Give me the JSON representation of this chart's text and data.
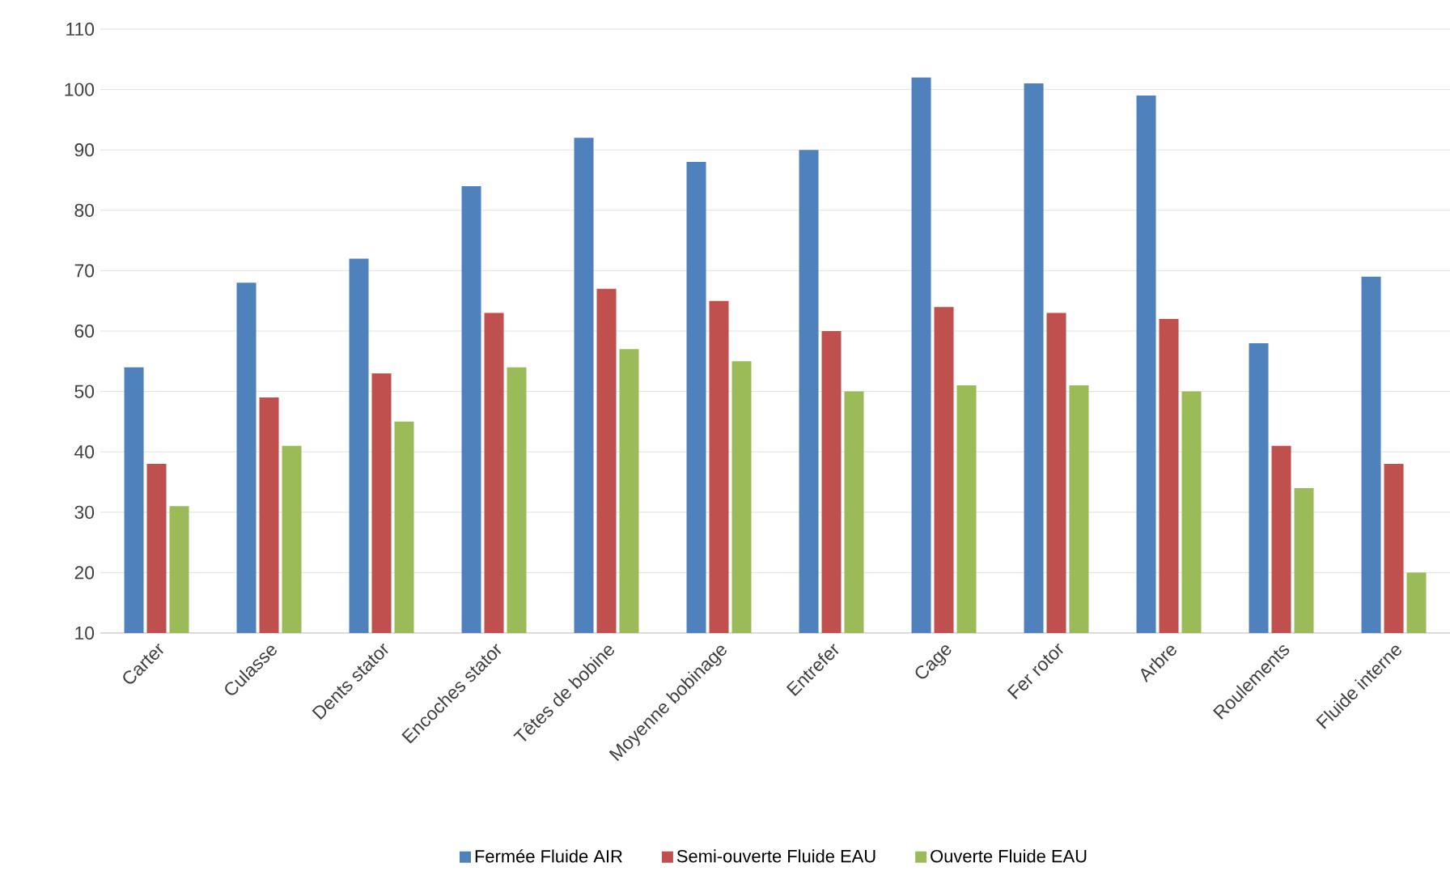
{
  "chart_data": {
    "type": "bar",
    "categories": [
      "Carter",
      "Culasse",
      "Dents stator",
      "Encoches stator",
      "Têtes de bobine",
      "Moyenne bobinage",
      "Entrefer",
      "Cage",
      "Fer rotor",
      "Arbre",
      "Roulements",
      "Fluide interne"
    ],
    "series": [
      {
        "name": "Fermée Fluide AIR",
        "color": "#4f81bd",
        "values": [
          54,
          68,
          72,
          84,
          92,
          88,
          90,
          102,
          101,
          99,
          58,
          69
        ]
      },
      {
        "name": "Semi-ouverte Fluide EAU",
        "color": "#c0504d",
        "values": [
          38,
          49,
          53,
          63,
          67,
          65,
          60,
          64,
          63,
          62,
          41,
          38
        ]
      },
      {
        "name": "Ouverte Fluide EAU",
        "color": "#9bbb59",
        "values": [
          31,
          41,
          45,
          54,
          57,
          55,
          50,
          51,
          51,
          50,
          34,
          20
        ]
      }
    ],
    "ylim": [
      10,
      110
    ],
    "yticks": [
      10,
      20,
      30,
      40,
      50,
      60,
      70,
      80,
      90,
      100,
      110
    ],
    "grid": "y",
    "legend": "bottom"
  }
}
